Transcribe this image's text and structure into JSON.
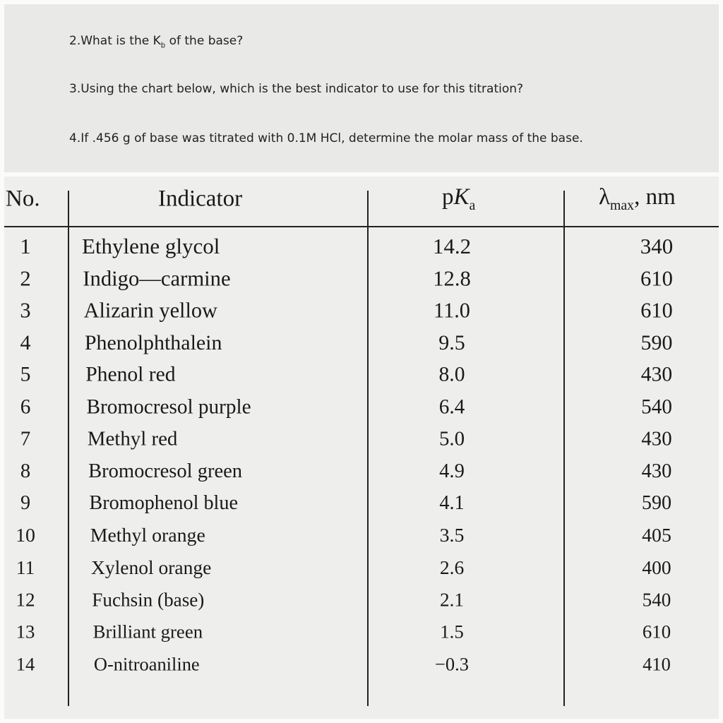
{
  "questions": [
    {
      "before": "2.What is the K",
      "sub": "b",
      "after": " of the base?"
    },
    {
      "text": "3.Using the chart below, which  is the best indicator to use for this titration?"
    },
    {
      "text": "4.If .456 g of base was titrated with 0.1M HCl, determine the molar mass of the base."
    }
  ],
  "table": {
    "headers": {
      "no": "No.",
      "indicator": "Indicator",
      "pka": {
        "p": "p",
        "k": "K",
        "sub": "a"
      },
      "lambda": {
        "symbol": "λ",
        "sub": "max",
        "after": ", nm"
      }
    },
    "rows": [
      [
        "1",
        "Ethylene glycol",
        "14.2",
        "340"
      ],
      [
        "2",
        "Indigo—carmine",
        "12.8",
        "610"
      ],
      [
        "3",
        "Alizarin yellow",
        "11.0",
        "610"
      ],
      [
        "4",
        "Phenolphthalein",
        "9.5",
        "590"
      ],
      [
        "5",
        "Phenol red",
        "8.0",
        "430"
      ],
      [
        "6",
        "Bromocresol purple",
        "6.4",
        "540"
      ],
      [
        "7",
        "Methyl red",
        "5.0",
        "430"
      ],
      [
        "8",
        "Bromocresol green",
        "4.9",
        "430"
      ],
      [
        "9",
        "Bromophenol blue",
        "4.1",
        "590"
      ],
      [
        "10",
        "Methyl orange",
        "3.5",
        "405"
      ],
      [
        "11",
        "Xylenol orange",
        "2.6",
        "400"
      ],
      [
        "12",
        "Fuchsin (base)",
        "2.1",
        "540"
      ],
      [
        "13",
        "Brilliant green",
        "1.5",
        "610"
      ],
      [
        "14",
        "O-nitroaniline",
        "−0.3",
        "410"
      ]
    ]
  }
}
